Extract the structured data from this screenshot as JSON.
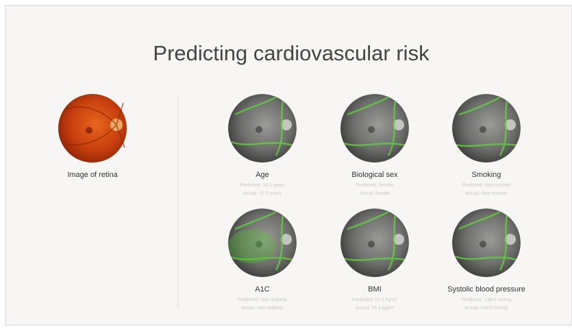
{
  "title": "Predicting cardiovascular risk",
  "input": {
    "label": "Image of retina"
  },
  "predictions": [
    {
      "label": "Age",
      "predicted": "Predicted: 59.1 years",
      "actual": "Actual: 57.6 years"
    },
    {
      "label": "Biological sex",
      "predicted": "Predicted: female",
      "actual": "Actual: female"
    },
    {
      "label": "Smoking",
      "predicted": "Predicted: Non-smoker",
      "actual": "Actual: Non-smoker"
    },
    {
      "label": "A1C",
      "predicted": "Predicted: Non-diabetic",
      "actual": "Actual: Non-diabetic"
    },
    {
      "label": "BMI",
      "predicted": "Predicted: 24.1 kg/m²",
      "actual": "Actual: 26.3 kg/m²"
    },
    {
      "label": "Systolic blood pressure",
      "predicted": "Predicted: 148.0 mmHg",
      "actual": "Actual: 148.5 mmHg"
    }
  ]
}
